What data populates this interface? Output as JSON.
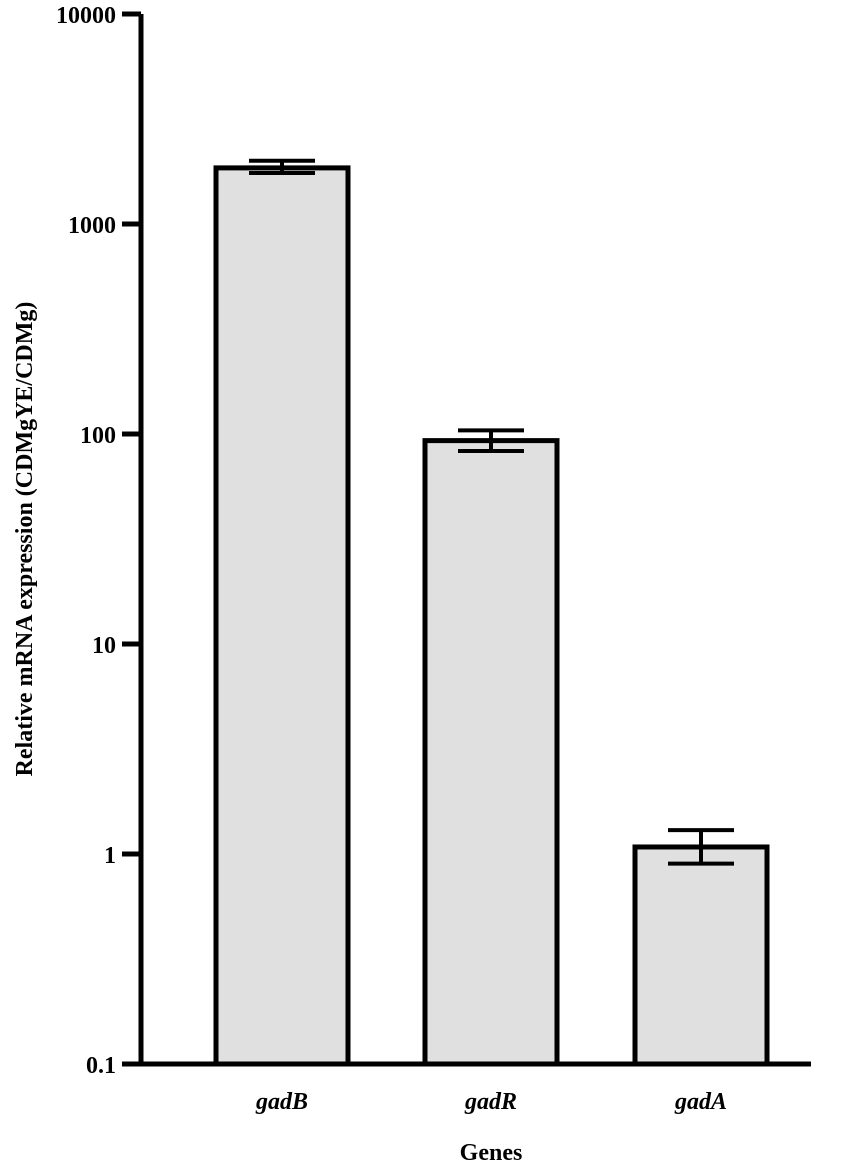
{
  "chart_data": {
    "type": "bar",
    "title": "",
    "xlabel": "Genes",
    "ylabel": "Relative mRNA expression (CDMgYE/CDMg)",
    "y_scale": "log10",
    "ylim": [
      0.1,
      10000
    ],
    "yticks": [
      "0.1",
      "1",
      "10",
      "100",
      "1000",
      "10000"
    ],
    "categories": [
      "gadB",
      "gadR",
      "gadA"
    ],
    "values": [
      1850,
      93,
      1.08
    ],
    "error_upper": [
      2000,
      104,
      1.3
    ],
    "error_lower": [
      1750,
      83,
      0.9
    ],
    "bar_color": "#e0e0e0",
    "edge_color": "#000000",
    "grid": false,
    "legend": "none"
  }
}
